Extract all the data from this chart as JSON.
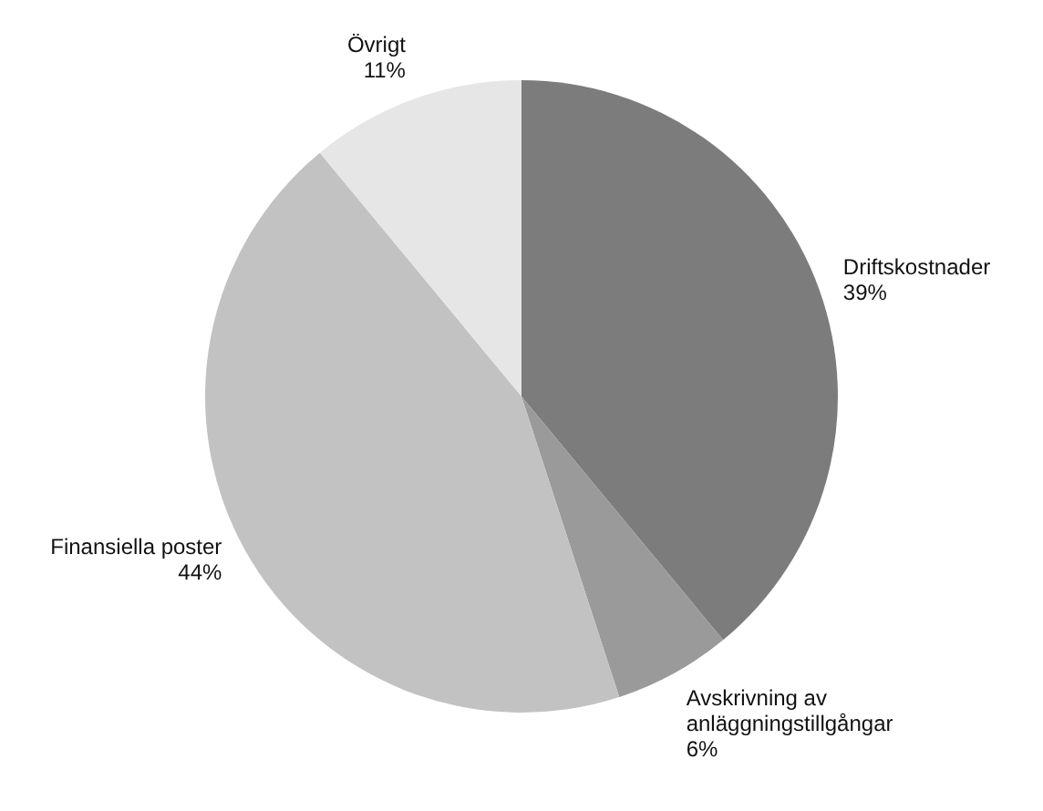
{
  "chart_data": {
    "type": "pie",
    "categories": [
      "Driftskostnader",
      "Avskrivning av anläggningstillgångar",
      "Finansiella poster",
      "Övrigt"
    ],
    "values": [
      39,
      6,
      44,
      11
    ],
    "colors": [
      "#7c7c7c",
      "#9a9a9a",
      "#c2c2c2",
      "#e6e6e6"
    ],
    "value_labels": [
      "39%",
      "6%",
      "44%",
      "11%"
    ],
    "legend": false
  }
}
